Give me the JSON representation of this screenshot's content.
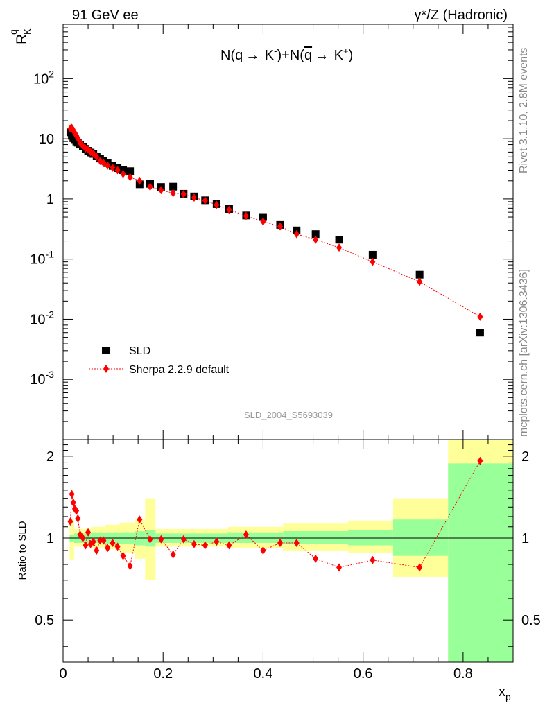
{
  "header": {
    "left": "91 GeV ee",
    "right": "γ*/Z (Hadronic)",
    "side_top": "Rivet 3.1.10,  2.8M events",
    "side_bottom": "mcplots.cern.ch [arXiv:1306.3436]"
  },
  "plot": {
    "ylabel_main": "R",
    "ylabel_super": "q",
    "ylabel_sub": "K⁻",
    "title_parts": {
      "a": "N(q",
      "arrow1": "→",
      "b": " K",
      "bsup": "-",
      "c": ")+N(",
      "qbar": "q",
      "arrow2": "→",
      "d": " K",
      "dsup": "+",
      "e": ")"
    },
    "watermark": "SLD_2004_S5693039",
    "ratio_ylabel": "Ratio to SLD",
    "xlabel": "x",
    "xlabel_sub": "p",
    "yticks_main": [
      {
        "base": "10",
        "exp": "-3"
      },
      {
        "base": "10",
        "exp": "-2"
      },
      {
        "base": "10",
        "exp": "-1"
      },
      {
        "base": "1",
        "exp": ""
      },
      {
        "base": "10",
        "exp": ""
      },
      {
        "base": "10",
        "exp": "2"
      }
    ],
    "yticks_ratio": [
      "0.5",
      "1",
      "2"
    ],
    "xticks": [
      "0",
      "0.2",
      "0.4",
      "0.6",
      "0.8"
    ]
  },
  "chart_data": {
    "type": "scatter",
    "xlabel": "x_p",
    "ylabel": "R^q_K-",
    "title": "N(q→ K-)+N(q̄→ K+)",
    "xlim": [
      0,
      0.9
    ],
    "ylim": [
      0.0001,
      800
    ],
    "y_scale": "log",
    "ratio_ylim": [
      0.35,
      2.3
    ],
    "ratio_y_scale": "log",
    "legend_position": "lower-left",
    "colors": {
      "data": "#000000",
      "mc": "#ff0000",
      "band_inner": "#99ff99",
      "band_outer": "#ffff99"
    },
    "series": [
      {
        "name": "SLD",
        "marker": "square",
        "x": [
          0.0145,
          0.0175,
          0.0205,
          0.0235,
          0.0265,
          0.0295,
          0.034,
          0.0395,
          0.045,
          0.05,
          0.055,
          0.0605,
          0.067,
          0.074,
          0.081,
          0.089,
          0.099,
          0.109,
          0.12,
          0.134,
          0.153,
          0.174,
          0.196,
          0.22,
          0.241,
          0.262,
          0.284,
          0.307,
          0.332,
          0.366,
          0.4,
          0.434,
          0.467,
          0.505,
          0.552,
          0.619,
          0.713,
          0.834
        ],
        "y": [
          12.8,
          11.2,
          10.2,
          9.8,
          9.0,
          8.6,
          8.0,
          7.4,
          6.8,
          6.3,
          5.9,
          5.6,
          5.1,
          4.7,
          4.3,
          3.95,
          3.55,
          3.25,
          3.0,
          2.9,
          1.75,
          1.78,
          1.58,
          1.6,
          1.22,
          1.1,
          0.95,
          0.82,
          0.68,
          0.53,
          0.5,
          0.37,
          0.3,
          0.26,
          0.21,
          0.118,
          0.055,
          0.006
        ]
      },
      {
        "name": "Sherpa 2.2.9 default",
        "marker": "diamond",
        "line": "dotted",
        "x": [
          0.0145,
          0.0175,
          0.0205,
          0.0235,
          0.0265,
          0.0295,
          0.034,
          0.0395,
          0.045,
          0.05,
          0.055,
          0.0605,
          0.067,
          0.074,
          0.081,
          0.089,
          0.099,
          0.109,
          0.12,
          0.134,
          0.153,
          0.174,
          0.196,
          0.22,
          0.241,
          0.262,
          0.284,
          0.307,
          0.332,
          0.366,
          0.4,
          0.434,
          0.467,
          0.505,
          0.552,
          0.619,
          0.713,
          0.834
        ],
        "y": [
          14.8,
          15.2,
          13.8,
          12.5,
          11.3,
          10.2,
          8.6,
          7.6,
          6.9,
          6.6,
          6.0,
          5.7,
          5.0,
          4.3,
          3.95,
          3.6,
          3.3,
          3.0,
          2.6,
          2.3,
          2.0,
          1.6,
          1.4,
          1.25,
          1.2,
          1.05,
          0.94,
          0.8,
          0.66,
          0.52,
          0.42,
          0.35,
          0.26,
          0.21,
          0.155,
          0.09,
          0.042,
          0.011
        ]
      }
    ],
    "ratio": {
      "x": [
        0.0145,
        0.0175,
        0.0205,
        0.0235,
        0.0265,
        0.0295,
        0.034,
        0.0395,
        0.045,
        0.05,
        0.055,
        0.0605,
        0.067,
        0.074,
        0.081,
        0.089,
        0.099,
        0.109,
        0.12,
        0.134,
        0.153,
        0.174,
        0.196,
        0.22,
        0.241,
        0.262,
        0.284,
        0.307,
        0.332,
        0.366,
        0.4,
        0.434,
        0.467,
        0.505,
        0.552,
        0.619,
        0.713,
        0.834
      ],
      "y": [
        1.15,
        1.45,
        1.35,
        1.28,
        1.26,
        1.18,
        1.03,
        1.0,
        0.94,
        1.05,
        0.95,
        0.97,
        0.9,
        0.98,
        0.98,
        0.92,
        0.96,
        0.93,
        0.86,
        0.79,
        1.17,
        0.99,
        0.99,
        0.87,
        0.99,
        0.95,
        0.94,
        0.97,
        0.94,
        1.03,
        0.9,
        0.96,
        0.96,
        0.84,
        0.78,
        0.83,
        0.78,
        1.92
      ],
      "bands": [
        {
          "x": [
            0.013,
            0.022
          ],
          "inner": [
            0.97,
            1.03
          ],
          "outer": [
            0.83,
            1.17
          ]
        },
        {
          "x": [
            0.022,
            0.056
          ],
          "inner": [
            0.96,
            1.04
          ],
          "outer": [
            0.93,
            1.08
          ]
        },
        {
          "x": [
            0.056,
            0.084
          ],
          "inner": [
            0.96,
            1.05
          ],
          "outer": [
            0.92,
            1.1
          ]
        },
        {
          "x": [
            0.084,
            0.113
          ],
          "inner": [
            0.95,
            1.05
          ],
          "outer": [
            0.91,
            1.12
          ]
        },
        {
          "x": [
            0.113,
            0.144
          ],
          "inner": [
            0.95,
            1.05
          ],
          "outer": [
            0.88,
            1.14
          ]
        },
        {
          "x": [
            0.144,
            0.164
          ],
          "inner": [
            0.94,
            1.06
          ],
          "outer": [
            0.84,
            1.17
          ]
        },
        {
          "x": [
            0.164,
            0.185
          ],
          "inner": [
            0.93,
            1.07
          ],
          "outer": [
            0.7,
            1.4
          ]
        },
        {
          "x": [
            0.185,
            0.33
          ],
          "inner": [
            0.96,
            1.04
          ],
          "outer": [
            0.93,
            1.08
          ]
        },
        {
          "x": [
            0.33,
            0.44
          ],
          "inner": [
            0.96,
            1.05
          ],
          "outer": [
            0.92,
            1.1
          ]
        },
        {
          "x": [
            0.44,
            0.57
          ],
          "inner": [
            0.95,
            1.06
          ],
          "outer": [
            0.9,
            1.13
          ]
        },
        {
          "x": [
            0.57,
            0.66
          ],
          "inner": [
            0.94,
            1.07
          ],
          "outer": [
            0.88,
            1.16
          ]
        },
        {
          "x": [
            0.66,
            0.77
          ],
          "inner": [
            0.86,
            1.17
          ],
          "outer": [
            0.72,
            1.4
          ]
        },
        {
          "x": [
            0.77,
            0.9
          ],
          "inner": [
            0.2,
            1.88
          ],
          "outer": [
            0.2,
            2.5
          ]
        }
      ]
    }
  }
}
